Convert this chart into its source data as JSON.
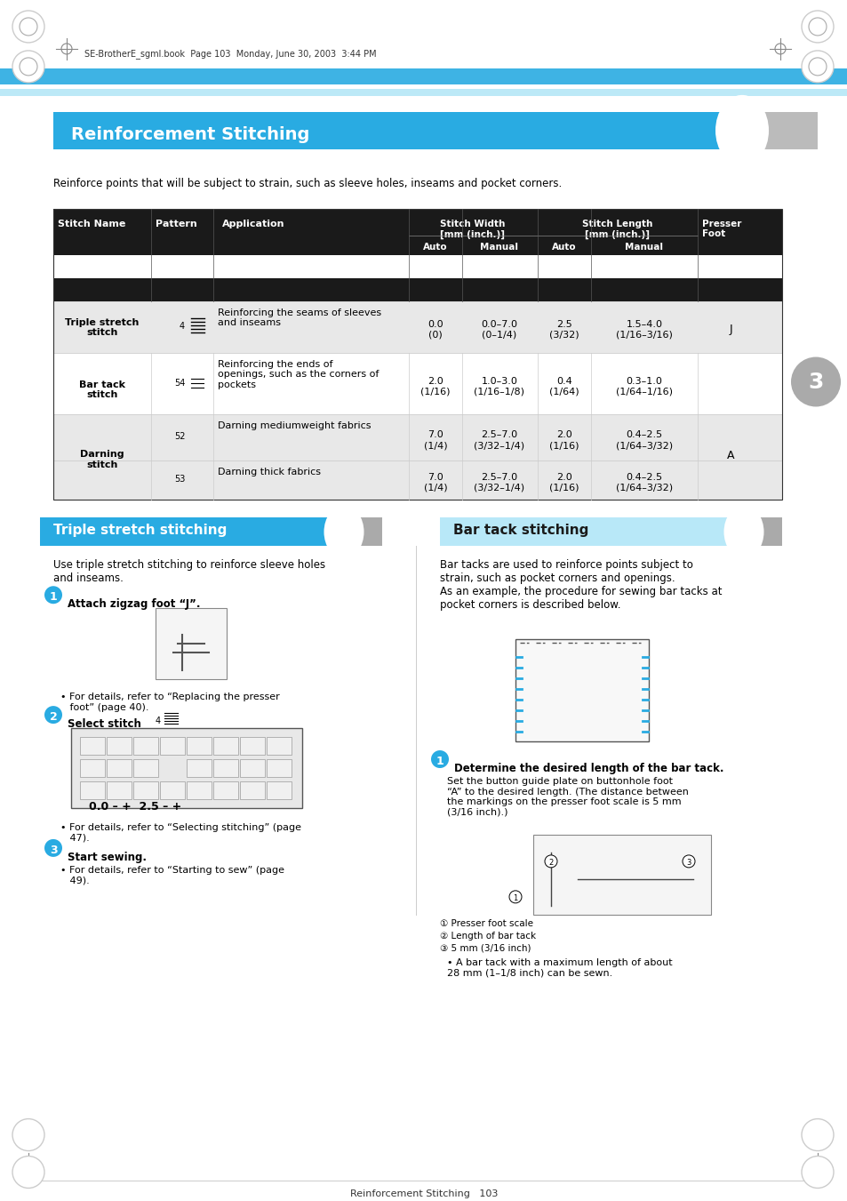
{
  "page_header_text": "SE-BrotherE_sgml.book  Page 103  Monday, June 30, 2003  3:44 PM",
  "section_title": "Reinforcement Stitching",
  "section_subtitle": "Reinforce points that will be subject to strain, such as sleeve holes, inseams and pocket corners.",
  "table_headers_row1": [
    "Stitch Name",
    "Pattern",
    "Application",
    "Stitch Width\n[mm (inch.)]",
    "",
    "Stitch Length\n[mm (inch.)]",
    "",
    "Presser\nFoot"
  ],
  "table_headers_row2": [
    "",
    "",
    "",
    "Auto",
    "Manual",
    "Auto",
    "Manual",
    ""
  ],
  "table_rows": [
    {
      "name": "Triple stretch\nstitch",
      "pattern_num": "4",
      "application": "Reinforcing the seams of sleeves\nand inseams",
      "sw_auto": "0.0\n(0)",
      "sw_manual": "0.0–7.0\n(0–1/4)",
      "sl_auto": "2.5\n(3/32)",
      "sl_manual": "1.5–4.0\n(1/16–3/16)",
      "presser": "J",
      "bg": "#e8e8e8"
    },
    {
      "name": "Bar tack\nstitch",
      "pattern_num": "54",
      "application": "Reinforcing the ends of\nopenings, such as the corners of\npockets",
      "sw_auto": "2.0\n(1/16)",
      "sw_manual": "1.0–3.0\n(1/16–1/8)",
      "sl_auto": "0.4\n(1/64)",
      "sl_manual": "0.3–1.0\n(1/64–1/16)",
      "presser": "",
      "bg": "#ffffff"
    },
    {
      "name": "Darning\nstitch",
      "pattern_num": "52",
      "application": "Darning mediumweight fabrics",
      "sw_auto": "7.0\n(1/4)",
      "sw_manual": "2.5–7.0\n(3/32–1/4)",
      "sl_auto": "2.0\n(1/16)",
      "sl_manual": "0.4–2.5\n(1/64–3/32)",
      "presser": "A",
      "bg": "#e8e8e8",
      "sub_row": true,
      "sub_pattern_num": "53",
      "sub_application": "Darning thick fabrics",
      "sub_sw_auto": "7.0\n(1/4)",
      "sub_sw_manual": "2.5–7.0\n(3/32–1/4)",
      "sub_sl_auto": "2.0\n(1/16)",
      "sub_sl_manual": "0.4–2.5\n(1/64–3/32)"
    }
  ],
  "left_section_title": "Triple stretch stitching",
  "left_step1_text": "Attach zigzag foot “J”.",
  "left_step1_bullet": "For details, refer to “Replacing the presser\nfoot” (page 40).",
  "left_step2_text": "Select stitch",
  "left_step2_num": "4",
  "left_step3_title": "Start sewing.",
  "left_step3_bullet": "For details, refer to “Starting to sew” (page\n49).",
  "left_step2_bullet": "For details, refer to “Selecting stitching” (page\n47).",
  "right_section_title": "Bar tack stitching",
  "right_intro": "Bar tacks are used to reinforce points subject to\nstrain, such as pocket corners and openings.\nAs an example, the procedure for sewing bar tacks at\npocket corners is described below.",
  "right_step1_title": "Determine the desired length of the bar tack.",
  "right_step1_text": "Set the button guide plate on buttonhole foot\n“A” to the desired length. (The distance between\nthe markings on the presser foot scale is 5 mm\n(3/16 inch).)",
  "right_caption1": "① Presser foot scale",
  "right_caption2": "② Length of bar tack",
  "right_caption3": "③ 5 mm (3/16 inch)",
  "right_bullet": "A bar tack with a maximum length of about\n28 mm (1–1/8 inch) can be sewn.",
  "footer_text": "Reinforcement Stitching   103",
  "header_bar_color": "#29abe2",
  "table_header_bg": "#1a1a1a",
  "table_header_fg": "#ffffff",
  "section_header_bg": "#29abe2",
  "section_header_fg": "#ffffff",
  "cyan_circle_color": "#29abe2",
  "page_bg": "#ffffff",
  "tab_num_color": "#444444",
  "gray_circle_color": "#aaaaaa"
}
